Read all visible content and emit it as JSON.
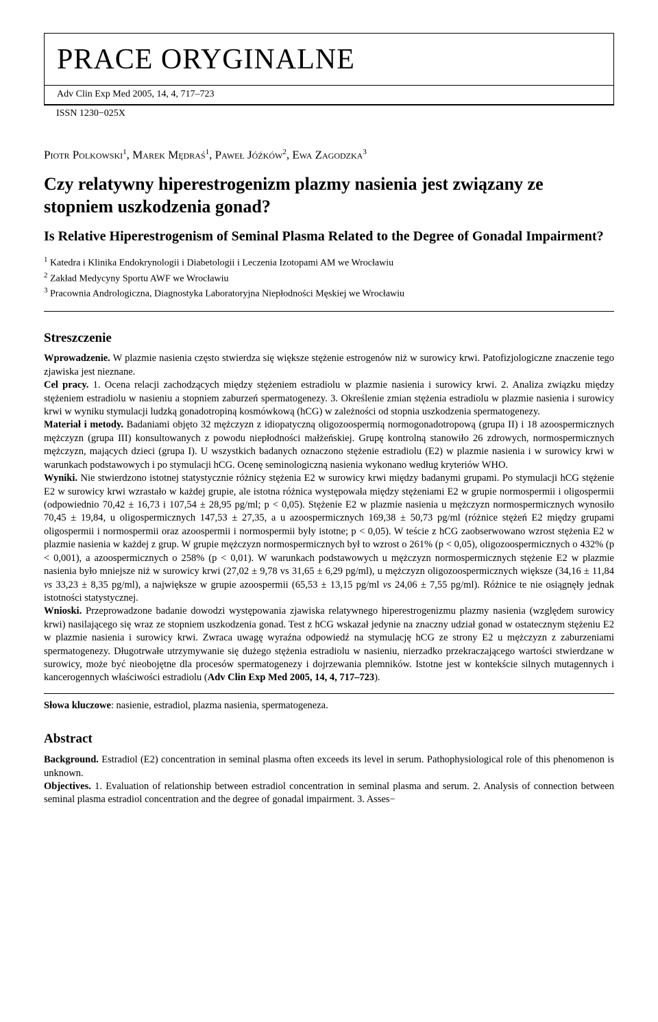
{
  "header": {
    "section_label": "PRACE ORYGINALNE",
    "citation": "Adv Clin Exp Med 2005, 14, 4, 717–723",
    "issn": "ISSN 1230−025X"
  },
  "authors_html": "Piotr Polkowski<sup class='sup'>1</sup>, Marek Mędraś<sup class='sup'>1</sup>, Paweł Jóźków<sup class='sup'>2</sup>, Ewa Zagodzka<sup class='sup'>3</sup>",
  "title_pl": "Czy relatywny hiperestrogenizm plazmy nasienia jest związany ze stopniem uszkodzenia gonad?",
  "title_en": "Is Relative Hiperestrogenism of Seminal Plasma Related to the Degree of Gonadal Impairment?",
  "affiliations": [
    "<sup class='sup'>1</sup> Katedra i Klinika Endokrynologii i Diabetologii i Leczenia Izotopami AM we Wrocławiu",
    "<sup class='sup'>2</sup> Zakład Medycyny Sportu AWF we Wrocławiu",
    "<sup class='sup'>3</sup> Pracownia Andrologiczna, Diagnostyka Laboratoryjna Niepłodności Męskiej we Wrocławiu"
  ],
  "streszczenie": {
    "heading": "Streszczenie",
    "paragraphs": [
      "<span class='run-in'>Wprowadzenie.</span> W plazmie nasienia często stwierdza się większe stężenie estrogenów niż w surowicy krwi. Patofizjologiczne znaczenie tego zjawiska jest nieznane.",
      "<span class='run-in'>Cel pracy.</span> 1. Ocena relacji zachodzących między stężeniem estradiolu w plazmie nasienia i surowicy krwi. 2. Analiza związku między stężeniem estradiolu w nasieniu a stopniem zaburzeń spermatogenezy. 3. Określenie zmian stężenia estradiolu w plazmie nasienia i surowicy krwi w wyniku stymulacji ludzką gonadotropiną kosmówkową (hCG) w zależności od stopnia uszkodzenia spermatogenezy.",
      "<span class='run-in'>Materiał i metody.</span> Badaniami objęto 32 mężczyzn z idiopatyczną oligozoospermią normogonadotropową (grupa II) i 18 azoospermicznych mężczyzn (grupa III) konsultowanych z powodu niepłodności małżeńskiej. Grupę kontrolną stanowiło 26 zdrowych, normospermicznych mężczyzn, mających dzieci (grupa I). U wszystkich badanych oznaczono stężenie estradiolu (E2) w plazmie nasienia i w surowicy krwi w warunkach podstawowych i po stymulacji hCG. Ocenę seminologiczną nasienia wykonano według kryteriów WHO.",
      "<span class='run-in'>Wyniki.</span> Nie stwierdzono istotnej statystycznie różnicy stężenia E2 w surowicy krwi między badanymi grupami. Po stymulacji hCG stężenie E2 w surowicy krwi wzrastało w każdej grupie, ale istotna różnica występowała między stężeniami E2 w grupie normospermii i oligospermii (odpowiednio 70,42 ± 16,73 i 107,54 ± 28,95 pg/ml; p < 0,05). Stężenie E2 w plazmie nasienia u mężczyzn normospermicznych wynosiło 70,45 ± 19,84, u oligospermicznych 147,53 ± 27,35, a u azoospermicznych 169,38 ± 50,73 pg/ml (różnice stężeń E2 między grupami oligospermii i normospermii oraz azoospermii i normospermii były istotne; p < 0,05). W teście z hCG zaobserwowano wzrost stężenia E2 w plazmie nasienia w każdej z grup. W grupie mężczyzn normospermicznych był to wzrost o 261% (p < 0,05), oligozoospermicznych o 432% (p < 0,001), a azoospermicznych o 258% (p < 0,01). W warunkach podstawowych u mężczyzn normospermicznych stężenie E2 w plazmie nasienia było mniejsze niż w surowicy krwi (27,02 ± 9,78 vs 31,65 ± 6,29 pg/ml), u mężczyzn oligozoospermicznych większe (34,16 ± 11,84 <i>vs</i> 33,23 ± 8,35 pg/ml), a największe w grupie azoospermii (65,53 ± 13,15 pg/ml <i>vs</i> 24,06 ± 7,55 pg/ml). Różnice te nie osiągnęły jednak istotności statystycznej.",
      "<span class='run-in'>Wnioski.</span> Przeprowadzone badanie dowodzi występowania zjawiska relatywnego hiperestrogenizmu plazmy nasienia (względem surowicy krwi) nasilającego się wraz ze stopniem uszkodzenia gonad. Test z hCG wskazał jedynie na znaczny udział gonad w ostatecznym stężeniu E2 w plazmie nasienia i surowicy krwi. Zwraca uwagę wyraźna odpowiedź na stymulację hCG ze strony E2 u mężczyzn z zaburzeniami spermatogenezy. Długotrwałe utrzymywanie się dużego stężenia estradiolu w nasieniu, nierzadko przekraczającego wartości stwierdzane w surowicy, może być nieobojętne dla procesów spermatogenezy i dojrzewania plemników. Istotne jest w kontekście silnych mutagennych i kancerogennych właściwości estradiolu (<b>Adv Clin Exp Med 2005, 14, 4, 717–723</b>)."
    ]
  },
  "keywords": {
    "label": "Słowa kluczowe",
    "text": "nasienie, estradiol, plazma nasienia, spermatogeneza."
  },
  "abstract": {
    "heading": "Abstract",
    "paragraphs": [
      "<span class='run-in'>Background.</span> Estradiol (E2) concentration in seminal plasma often exceeds its level in serum. Pathophysiological role of this phenomenon is unknown.",
      "<span class='run-in'>Objectives.</span> 1. Evaluation of relationship between estradiol concentration in seminal plasma and serum. 2. Analysis of connection between seminal plasma estradiol concentration and the degree of gonadal impairment. 3. Asses−"
    ]
  }
}
